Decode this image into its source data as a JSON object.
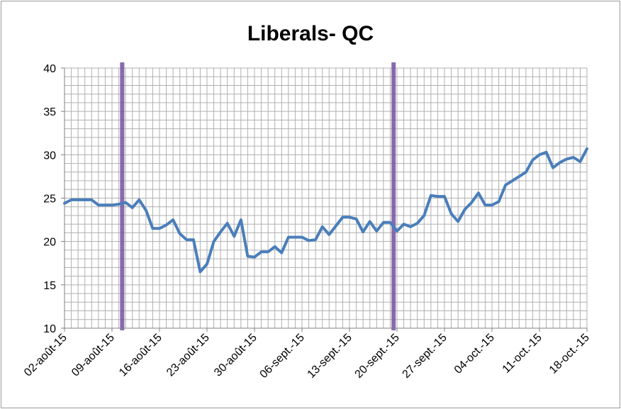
{
  "chart_data": {
    "type": "line",
    "title": "Liberals- QC",
    "xlabel": "",
    "ylabel": "",
    "ylim": [
      10,
      40
    ],
    "yticks": [
      "10",
      "15",
      "20",
      "25",
      "30",
      "35",
      "40"
    ],
    "x_start_date": "2015-08-02",
    "x_tick_labels": [
      "02-août-15",
      "09-août-15",
      "16-août-15",
      "23-août-15",
      "30-août-15",
      "06-sept.-15",
      "13-sept.-15",
      "20-sept.-15",
      "27-sept.-15",
      "04-oct.-15",
      "11-oct.-15",
      "18-oct.-15"
    ],
    "grid": true,
    "series": [
      {
        "color": "#4a7ebb",
        "points": [
          [
            "2015-08-02",
            24.4
          ],
          [
            "2015-08-03",
            24.8
          ],
          [
            "2015-08-04",
            24.8
          ],
          [
            "2015-08-05",
            24.8
          ],
          [
            "2015-08-06",
            24.8
          ],
          [
            "2015-08-07",
            24.2
          ],
          [
            "2015-08-08",
            24.2
          ],
          [
            "2015-08-09",
            24.2
          ],
          [
            "2015-08-10",
            24.3
          ],
          [
            "2015-08-11",
            24.5
          ],
          [
            "2015-08-12",
            23.9
          ],
          [
            "2015-08-13",
            24.8
          ],
          [
            "2015-08-14",
            23.6
          ],
          [
            "2015-08-15",
            21.5
          ],
          [
            "2015-08-16",
            21.5
          ],
          [
            "2015-08-17",
            21.9
          ],
          [
            "2015-08-18",
            22.5
          ],
          [
            "2015-08-19",
            20.9
          ],
          [
            "2015-08-20",
            20.2
          ],
          [
            "2015-08-21",
            20.2
          ],
          [
            "2015-08-22",
            16.5
          ],
          [
            "2015-08-23",
            17.4
          ],
          [
            "2015-08-24",
            20.0
          ],
          [
            "2015-08-25",
            21.1
          ],
          [
            "2015-08-26",
            22.1
          ],
          [
            "2015-08-27",
            20.6
          ],
          [
            "2015-08-28",
            22.5
          ],
          [
            "2015-08-29",
            18.3
          ],
          [
            "2015-08-30",
            18.2
          ],
          [
            "2015-08-31",
            18.8
          ],
          [
            "2015-09-01",
            18.8
          ],
          [
            "2015-09-02",
            19.4
          ],
          [
            "2015-09-03",
            18.7
          ],
          [
            "2015-09-04",
            20.5
          ],
          [
            "2015-09-05",
            20.5
          ],
          [
            "2015-09-06",
            20.5
          ],
          [
            "2015-09-07",
            20.1
          ],
          [
            "2015-09-08",
            20.2
          ],
          [
            "2015-09-09",
            21.7
          ],
          [
            "2015-09-10",
            20.8
          ],
          [
            "2015-09-11",
            21.8
          ],
          [
            "2015-09-12",
            22.8
          ],
          [
            "2015-09-13",
            22.8
          ],
          [
            "2015-09-14",
            22.6
          ],
          [
            "2015-09-15",
            21.1
          ],
          [
            "2015-09-16",
            22.3
          ],
          [
            "2015-09-17",
            21.2
          ],
          [
            "2015-09-18",
            22.2
          ],
          [
            "2015-09-19",
            22.2
          ],
          [
            "2015-09-20",
            21.2
          ],
          [
            "2015-09-21",
            22.0
          ],
          [
            "2015-09-22",
            21.7
          ],
          [
            "2015-09-23",
            22.1
          ],
          [
            "2015-09-24",
            23.0
          ],
          [
            "2015-09-25",
            25.3
          ],
          [
            "2015-09-26",
            25.2
          ],
          [
            "2015-09-27",
            25.2
          ],
          [
            "2015-09-28",
            23.2
          ],
          [
            "2015-09-29",
            22.3
          ],
          [
            "2015-09-30",
            23.7
          ],
          [
            "2015-10-01",
            24.5
          ],
          [
            "2015-10-02",
            25.6
          ],
          [
            "2015-10-03",
            24.2
          ],
          [
            "2015-10-04",
            24.2
          ],
          [
            "2015-10-05",
            24.6
          ],
          [
            "2015-10-06",
            26.5
          ],
          [
            "2015-10-07",
            27.0
          ],
          [
            "2015-10-08",
            27.5
          ],
          [
            "2015-10-09",
            28.0
          ],
          [
            "2015-10-10",
            29.4
          ],
          [
            "2015-10-11",
            30.0
          ],
          [
            "2015-10-12",
            30.3
          ],
          [
            "2015-10-13",
            28.5
          ],
          [
            "2015-10-14",
            29.1
          ],
          [
            "2015-10-15",
            29.5
          ],
          [
            "2015-10-16",
            29.7
          ],
          [
            "2015-10-17",
            29.2
          ],
          [
            "2015-10-18",
            30.7
          ]
        ]
      }
    ],
    "markers": [
      {
        "x": "2015-08-10",
        "color": "#7b5aa6"
      },
      {
        "x": "2015-09-19",
        "color": "#7b5aa6"
      }
    ],
    "gridline_color": "#b0b0b0"
  }
}
